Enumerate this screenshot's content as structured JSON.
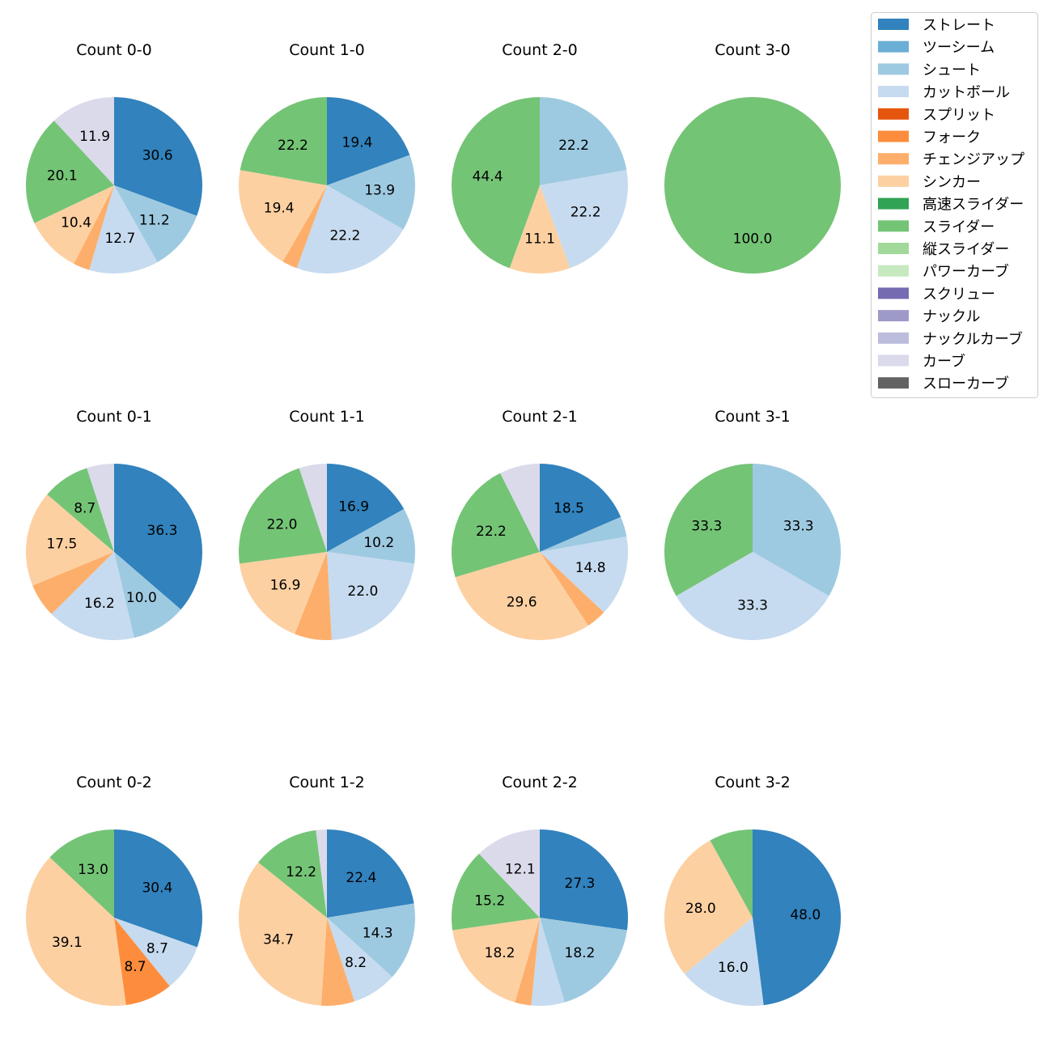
{
  "legend": {
    "items": [
      {
        "label": "ストレート",
        "color": "#3182bd"
      },
      {
        "label": "ツーシーム",
        "color": "#6baed6"
      },
      {
        "label": "シュート",
        "color": "#9ecae1"
      },
      {
        "label": "カットボール",
        "color": "#c6dbef"
      },
      {
        "label": "スプリット",
        "color": "#e6550d"
      },
      {
        "label": "フォーク",
        "color": "#fd8d3c"
      },
      {
        "label": "チェンジアップ",
        "color": "#fdae6b"
      },
      {
        "label": "シンカー",
        "color": "#fdd0a2"
      },
      {
        "label": "高速スライダー",
        "color": "#31a354"
      },
      {
        "label": "スライダー",
        "color": "#74c476"
      },
      {
        "label": "縦スライダー",
        "color": "#a1d99b"
      },
      {
        "label": "パワーカーブ",
        "color": "#c7e9c0"
      },
      {
        "label": "スクリュー",
        "color": "#756bb1"
      },
      {
        "label": "ナックル",
        "color": "#9e9ac8"
      },
      {
        "label": "ナックルカーブ",
        "color": "#bcbddc"
      },
      {
        "label": "カーブ",
        "color": "#dadaeb"
      },
      {
        "label": "スローカーブ",
        "color": "#636363"
      }
    ]
  },
  "chart_data": [
    {
      "type": "pie",
      "title": "Count 0-0",
      "slices": [
        {
          "pitch": "ストレート",
          "value": 30.6,
          "label": "30.6"
        },
        {
          "pitch": "シュート",
          "value": 11.2,
          "label": "11.2"
        },
        {
          "pitch": "カットボール",
          "value": 12.7,
          "label": "12.7"
        },
        {
          "pitch": "チェンジアップ",
          "value": 3.0,
          "label": ""
        },
        {
          "pitch": "シンカー",
          "value": 10.4,
          "label": "10.4"
        },
        {
          "pitch": "スライダー",
          "value": 20.1,
          "label": "20.1"
        },
        {
          "pitch": "カーブ",
          "value": 11.9,
          "label": "11.9"
        }
      ]
    },
    {
      "type": "pie",
      "title": "Count 1-0",
      "slices": [
        {
          "pitch": "ストレート",
          "value": 19.4,
          "label": "19.4"
        },
        {
          "pitch": "シュート",
          "value": 13.9,
          "label": "13.9"
        },
        {
          "pitch": "カットボール",
          "value": 22.2,
          "label": "22.2"
        },
        {
          "pitch": "チェンジアップ",
          "value": 2.8,
          "label": ""
        },
        {
          "pitch": "シンカー",
          "value": 19.4,
          "label": "19.4"
        },
        {
          "pitch": "スライダー",
          "value": 22.2,
          "label": "22.2"
        }
      ]
    },
    {
      "type": "pie",
      "title": "Count 2-0",
      "slices": [
        {
          "pitch": "シュート",
          "value": 22.2,
          "label": "22.2"
        },
        {
          "pitch": "カットボール",
          "value": 22.2,
          "label": "22.2"
        },
        {
          "pitch": "シンカー",
          "value": 11.1,
          "label": "11.1"
        },
        {
          "pitch": "スライダー",
          "value": 44.4,
          "label": "44.4"
        }
      ]
    },
    {
      "type": "pie",
      "title": "Count 3-0",
      "slices": [
        {
          "pitch": "スライダー",
          "value": 100.0,
          "label": "100.0"
        }
      ]
    },
    {
      "type": "pie",
      "title": "Count 0-1",
      "slices": [
        {
          "pitch": "ストレート",
          "value": 36.3,
          "label": "36.3"
        },
        {
          "pitch": "シュート",
          "value": 10.0,
          "label": "10.0"
        },
        {
          "pitch": "カットボール",
          "value": 16.2,
          "label": "16.2"
        },
        {
          "pitch": "チェンジアップ",
          "value": 6.2,
          "label": ""
        },
        {
          "pitch": "シンカー",
          "value": 17.5,
          "label": "17.5"
        },
        {
          "pitch": "スライダー",
          "value": 8.7,
          "label": "8.7"
        },
        {
          "pitch": "カーブ",
          "value": 5.0,
          "label": ""
        }
      ]
    },
    {
      "type": "pie",
      "title": "Count 1-1",
      "slices": [
        {
          "pitch": "ストレート",
          "value": 16.9,
          "label": "16.9"
        },
        {
          "pitch": "シュート",
          "value": 10.2,
          "label": "10.2"
        },
        {
          "pitch": "カットボール",
          "value": 22.0,
          "label": "22.0"
        },
        {
          "pitch": "チェンジアップ",
          "value": 6.8,
          "label": ""
        },
        {
          "pitch": "シンカー",
          "value": 16.9,
          "label": "16.9"
        },
        {
          "pitch": "スライダー",
          "value": 22.0,
          "label": "22.0"
        },
        {
          "pitch": "カーブ",
          "value": 5.1,
          "label": ""
        }
      ]
    },
    {
      "type": "pie",
      "title": "Count 2-1",
      "slices": [
        {
          "pitch": "ストレート",
          "value": 18.5,
          "label": "18.5"
        },
        {
          "pitch": "シュート",
          "value": 3.7,
          "label": ""
        },
        {
          "pitch": "カットボール",
          "value": 14.8,
          "label": "14.8"
        },
        {
          "pitch": "チェンジアップ",
          "value": 3.7,
          "label": ""
        },
        {
          "pitch": "シンカー",
          "value": 29.6,
          "label": "29.6"
        },
        {
          "pitch": "スライダー",
          "value": 22.2,
          "label": "22.2"
        },
        {
          "pitch": "カーブ",
          "value": 7.4,
          "label": ""
        }
      ]
    },
    {
      "type": "pie",
      "title": "Count 3-1",
      "slices": [
        {
          "pitch": "シュート",
          "value": 33.3,
          "label": "33.3"
        },
        {
          "pitch": "カットボール",
          "value": 33.3,
          "label": "33.3"
        },
        {
          "pitch": "スライダー",
          "value": 33.3,
          "label": "33.3"
        }
      ]
    },
    {
      "type": "pie",
      "title": "Count 0-2",
      "slices": [
        {
          "pitch": "ストレート",
          "value": 30.4,
          "label": "30.4"
        },
        {
          "pitch": "カットボール",
          "value": 8.7,
          "label": "8.7"
        },
        {
          "pitch": "フォーク",
          "value": 8.7,
          "label": "8.7"
        },
        {
          "pitch": "シンカー",
          "value": 39.1,
          "label": "39.1"
        },
        {
          "pitch": "スライダー",
          "value": 13.0,
          "label": "13.0"
        }
      ]
    },
    {
      "type": "pie",
      "title": "Count 1-2",
      "slices": [
        {
          "pitch": "ストレート",
          "value": 22.4,
          "label": "22.4"
        },
        {
          "pitch": "シュート",
          "value": 14.3,
          "label": "14.3"
        },
        {
          "pitch": "カットボール",
          "value": 8.2,
          "label": "8.2"
        },
        {
          "pitch": "チェンジアップ",
          "value": 6.1,
          "label": ""
        },
        {
          "pitch": "シンカー",
          "value": 34.7,
          "label": "34.7"
        },
        {
          "pitch": "スライダー",
          "value": 12.2,
          "label": "12.2"
        },
        {
          "pitch": "カーブ",
          "value": 2.0,
          "label": ""
        }
      ]
    },
    {
      "type": "pie",
      "title": "Count 2-2",
      "slices": [
        {
          "pitch": "ストレート",
          "value": 27.3,
          "label": "27.3"
        },
        {
          "pitch": "シュート",
          "value": 18.2,
          "label": "18.2"
        },
        {
          "pitch": "カットボール",
          "value": 6.1,
          "label": ""
        },
        {
          "pitch": "チェンジアップ",
          "value": 3.0,
          "label": ""
        },
        {
          "pitch": "シンカー",
          "value": 18.2,
          "label": "18.2"
        },
        {
          "pitch": "スライダー",
          "value": 15.2,
          "label": "15.2"
        },
        {
          "pitch": "カーブ",
          "value": 12.1,
          "label": "12.1"
        }
      ]
    },
    {
      "type": "pie",
      "title": "Count 3-2",
      "slices": [
        {
          "pitch": "ストレート",
          "value": 48.0,
          "label": "48.0"
        },
        {
          "pitch": "カットボール",
          "value": 16.0,
          "label": "16.0"
        },
        {
          "pitch": "シンカー",
          "value": 28.0,
          "label": "28.0"
        },
        {
          "pitch": "スライダー",
          "value": 8.0,
          "label": ""
        }
      ]
    }
  ]
}
